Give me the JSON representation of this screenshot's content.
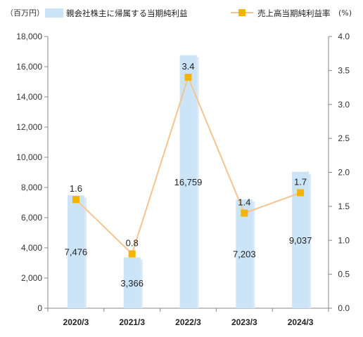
{
  "chart_data": {
    "type": "bar",
    "categories": [
      "2020/3",
      "2021/3",
      "2022/3",
      "2023/3",
      "2024/3"
    ],
    "series": [
      {
        "name": "親会社株主に帰属する当期純利益",
        "type": "bar",
        "axis": "left",
        "values": [
          7476,
          3366,
          16759,
          7203,
          9037
        ],
        "labels": [
          "7,476",
          "3,366",
          "16,759",
          "7,203",
          "9,037"
        ],
        "color": "#cce4f7"
      },
      {
        "name": "売上高当期純利益率",
        "type": "line",
        "axis": "right",
        "values": [
          1.6,
          0.8,
          3.4,
          1.4,
          1.7
        ],
        "labels": [
          "1.6",
          "0.8",
          "3.4",
          "1.4",
          "1.7"
        ],
        "color": "#f5c490",
        "marker_color": "#f5b400"
      }
    ],
    "left_axis": {
      "unit": "（百万円）",
      "ylim": [
        0,
        18000
      ],
      "ticks": [
        "0",
        "2,000",
        "4,000",
        "6,000",
        "8,000",
        "10,000",
        "12,000",
        "14,000",
        "16,000",
        "18,000"
      ]
    },
    "right_axis": {
      "unit": "(%)",
      "ylim": [
        0,
        4.0
      ],
      "ticks": [
        "0.0",
        "0.5",
        "1.0",
        "1.5",
        "2.0",
        "2.5",
        "3.0",
        "3.5",
        "4.0"
      ]
    },
    "grid": false,
    "legend": "top"
  }
}
